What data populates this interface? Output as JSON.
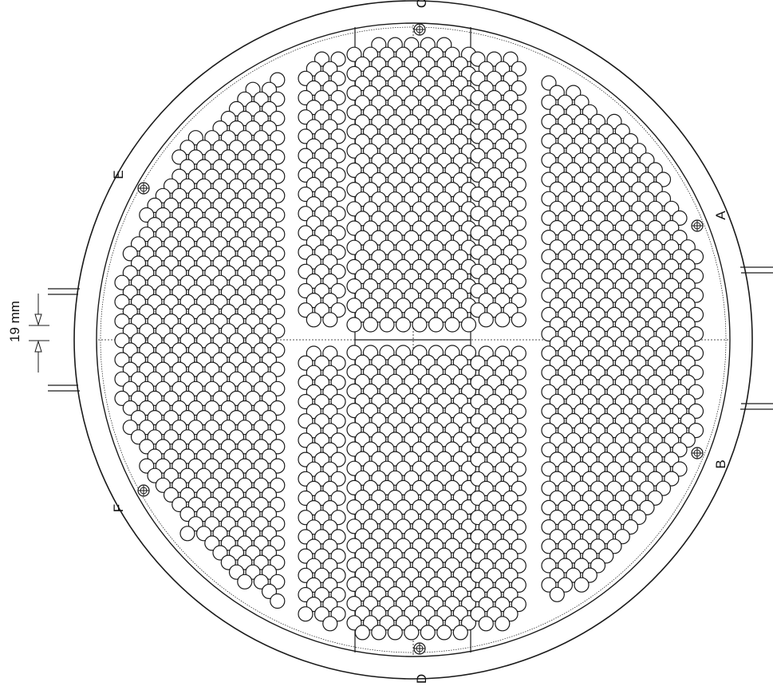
{
  "drawing": {
    "dimension_label": "19 mm",
    "markers": {
      "A": "A",
      "B": "B",
      "C": "C",
      "D": "D",
      "E": "E",
      "F": "F"
    }
  },
  "colors": {
    "line": "#1a1a1a",
    "background": "#ffffff"
  }
}
